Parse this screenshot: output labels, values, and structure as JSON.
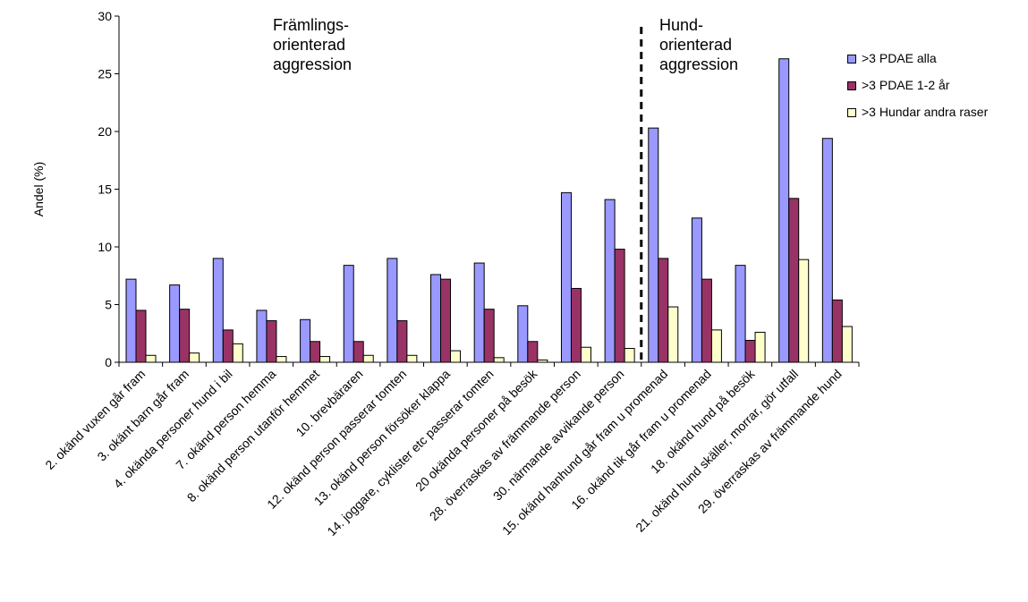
{
  "chart_data": {
    "type": "bar",
    "title": "",
    "xlabel": "",
    "ylabel": "Andel (%)",
    "ylim": [
      0,
      30
    ],
    "yticks": [
      "0",
      "5",
      "10",
      "15",
      "20",
      "25",
      "30"
    ],
    "grid": false,
    "legend_position": "right",
    "categories": [
      "2. okänd vuxen går fram",
      "3. okänt barn går fram",
      "4. okända personer hund i bil",
      "7. okänd person hemma",
      "8. okänd person utanför hemmet",
      "10. brevbäraren",
      "12. okänd person passerar tomten",
      "13. okänd person försöker klappa",
      "14. joggare, cyklister etc passerar tomten",
      "20 okända personer på besök",
      "28. överraskas av främmande person",
      "30. närmande avvikande person",
      "15. okänd hanhund går fram u promenad",
      "16. okänd tik går fram u promenad",
      "18. okänd hund på besök",
      "21. okänd hund skäller, morrar, gör utfall",
      "29. överraskas av främmande hund"
    ],
    "series": [
      {
        "name": ">3 PDAE alla",
        "color": "#9999ff",
        "values": [
          7.2,
          6.7,
          9.0,
          4.5,
          3.7,
          8.4,
          9.0,
          7.6,
          8.6,
          4.9,
          14.7,
          14.1,
          20.3,
          12.5,
          8.4,
          26.3,
          19.4
        ]
      },
      {
        "name": ">3 PDAE 1-2 år",
        "color": "#993366",
        "values": [
          4.5,
          4.6,
          2.8,
          3.6,
          1.8,
          1.8,
          3.6,
          7.2,
          4.6,
          1.8,
          6.4,
          9.8,
          9.0,
          7.2,
          1.9,
          14.2,
          5.4
        ]
      },
      {
        "name": ">3 Hundar andra raser",
        "color": "#ffffcc",
        "values": [
          0.6,
          0.8,
          1.6,
          0.5,
          0.5,
          0.6,
          0.6,
          1.0,
          0.4,
          0.2,
          1.3,
          1.2,
          4.8,
          2.8,
          2.6,
          8.9,
          3.1
        ]
      }
    ],
    "annotations": [
      {
        "text": "Främlings-\norienterad\naggression"
      },
      {
        "text": "Hund-\norienterad\naggression"
      }
    ],
    "divider": {
      "style": "dashed",
      "between_categories": [
        11,
        12
      ]
    }
  }
}
